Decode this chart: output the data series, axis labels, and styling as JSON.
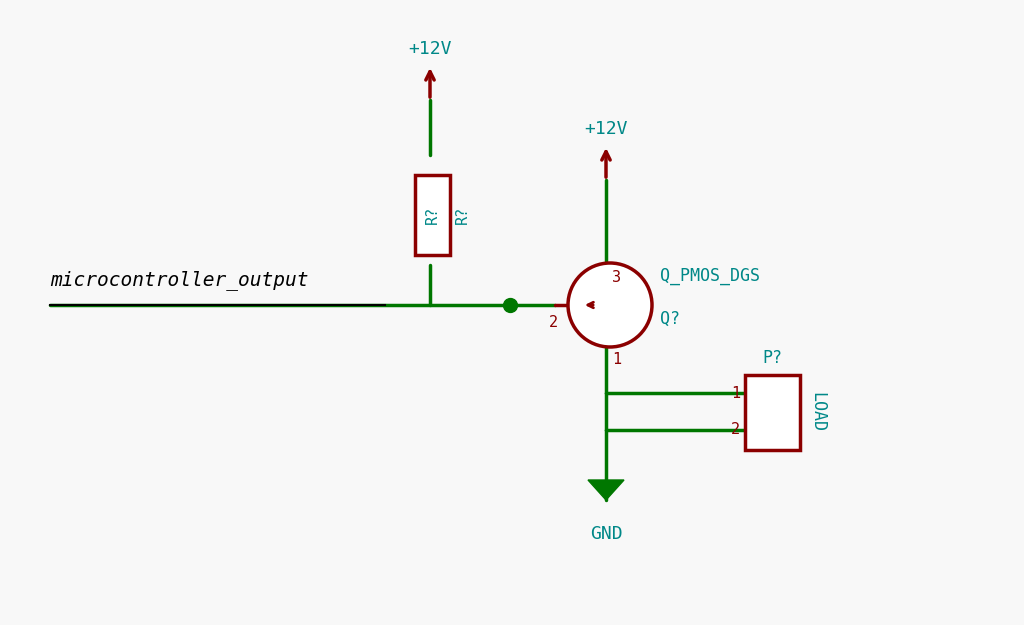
{
  "bg_color": "#f8f8f8",
  "wire_color": "#007700",
  "component_color": "#8B0000",
  "label_color": "#008888",
  "text_color": "#000000",
  "title_label": "microcontroller_output",
  "label_12v_1": "+12V",
  "label_12v_2": "+12V",
  "label_gnd": "GND",
  "label_r": "R?",
  "label_r2": "R?",
  "label_q": "Q_PMOS_DGS",
  "label_q2": "Q?",
  "label_p": "P?",
  "label_load": "LOAD",
  "label_1": "1",
  "label_2": "2",
  "label_3": "3",
  "label_gate": "2",
  "label_drain": "1",
  "label_source": "3"
}
